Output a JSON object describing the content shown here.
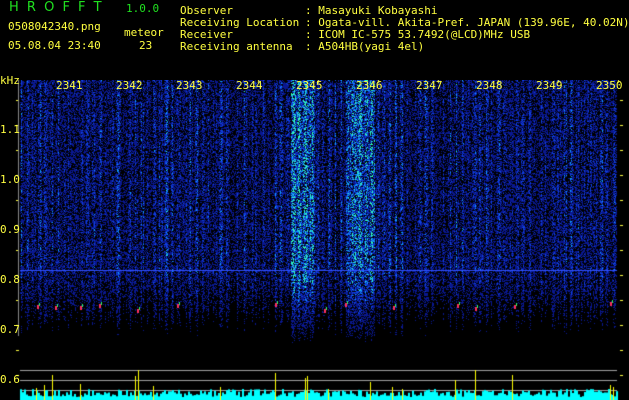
{
  "app": {
    "title": "H R O F F T",
    "version": "1.0.0"
  },
  "file": {
    "name": "0508042340.png",
    "datetime": "05.08.04 23:40"
  },
  "meteor": {
    "label": "meteor",
    "count": "23"
  },
  "info": [
    {
      "label": "Observer",
      "value": ": Masayuki Kobayashi"
    },
    {
      "label": "Receiving Location",
      "value": ": Ogata-vill. Akita-Pref. JAPAN (139.96E, 40.02N)"
    },
    {
      "label": "Receiver",
      "value": ": ICOM IC-575 53.7492(@LCD)MHz USB"
    },
    {
      "label": "Receiving antenna",
      "value": ": A504HB(yagi 4el)"
    }
  ],
  "axis": {
    "y_unit": "kHz",
    "y_ticks": [
      "1.1",
      "1.0",
      "0.9",
      "0.8",
      "0.7",
      "0.6"
    ],
    "x_ticks": [
      "2341",
      "2342",
      "2343",
      "2344",
      "2345",
      "2346",
      "2347",
      "2348",
      "2349",
      "2350"
    ]
  },
  "colors": {
    "text": "#ffff40",
    "title": "#20e020",
    "histogram": "#00ffff",
    "meteor_bar": "#ffff00",
    "reference_line": "#3050ff"
  }
}
